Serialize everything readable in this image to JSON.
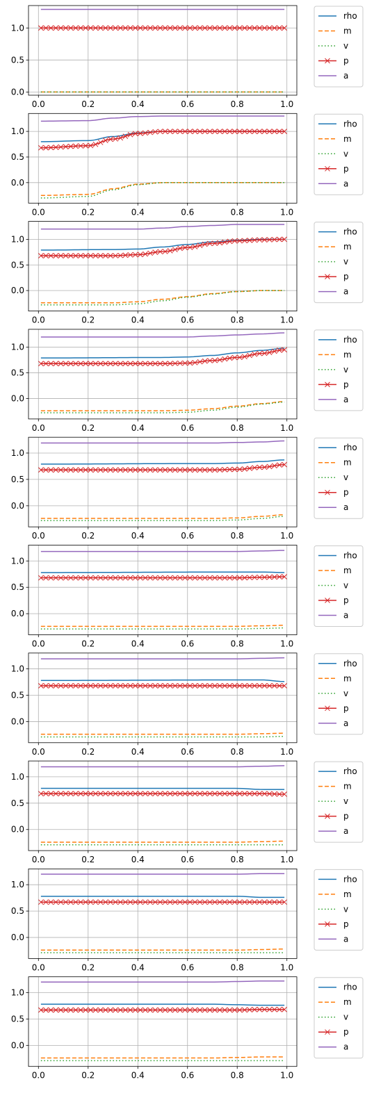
{
  "chart_data": [
    {
      "type": "line",
      "ylim": [
        -0.05,
        1.35
      ],
      "xticks": [
        "0.0",
        "0.2",
        "0.4",
        "0.6",
        "0.8",
        "1.0"
      ],
      "yticks": [
        "0.0",
        "0.5",
        "1.0"
      ],
      "grid": true,
      "legend_position": "outside-right",
      "x_range": [
        0.01,
        0.99
      ],
      "series": [
        {
          "name": "rho",
          "color": "#1f77b4",
          "style": "solid",
          "marker": "none",
          "values": [
            1.0,
            1.0
          ]
        },
        {
          "name": "m",
          "color": "#ff7f0e",
          "style": "dashed",
          "marker": "none",
          "values": [
            0.0,
            0.0
          ]
        },
        {
          "name": "v",
          "color": "#2ca02c",
          "style": "dotted",
          "marker": "none",
          "values": [
            0.0,
            0.0
          ]
        },
        {
          "name": "p",
          "color": "#d62728",
          "style": "solid",
          "marker": "x",
          "values": [
            1.0,
            1.0
          ]
        },
        {
          "name": "a",
          "color": "#9467bd",
          "style": "solid",
          "marker": "none",
          "values": [
            1.29,
            1.29
          ]
        }
      ]
    },
    {
      "type": "line",
      "ylim": [
        -0.4,
        1.35
      ],
      "xticks": [
        "0.0",
        "0.2",
        "0.4",
        "0.6",
        "0.8",
        "1.0"
      ],
      "yticks": [
        "0.0",
        "0.5",
        "1.0"
      ],
      "grid": true,
      "legend_position": "outside-right",
      "x": [
        0.01,
        0.2,
        0.3,
        0.4,
        0.5,
        0.6,
        0.8,
        0.99
      ],
      "series": [
        {
          "name": "rho",
          "values": [
            0.8,
            0.82,
            0.9,
            0.97,
            1.0,
            1.0,
            1.0,
            1.0
          ]
        },
        {
          "name": "m",
          "values": [
            -0.25,
            -0.23,
            -0.12,
            -0.03,
            0.0,
            0.0,
            0.0,
            0.0
          ]
        },
        {
          "name": "v",
          "values": [
            -0.3,
            -0.27,
            -0.14,
            -0.04,
            0.0,
            0.0,
            0.0,
            0.0
          ]
        },
        {
          "name": "p",
          "values": [
            0.68,
            0.72,
            0.85,
            0.96,
            1.0,
            1.0,
            1.0,
            1.0
          ]
        },
        {
          "name": "a",
          "values": [
            1.2,
            1.21,
            1.26,
            1.29,
            1.3,
            1.3,
            1.3,
            1.3
          ]
        }
      ]
    },
    {
      "type": "line",
      "ylim": [
        -0.4,
        1.35
      ],
      "xticks": [
        "0.0",
        "0.2",
        "0.4",
        "0.6",
        "0.8",
        "1.0"
      ],
      "yticks": [
        "0.0",
        "0.5",
        "1.0"
      ],
      "grid": true,
      "legend_position": "outside-right",
      "x": [
        0.01,
        0.3,
        0.4,
        0.5,
        0.6,
        0.7,
        0.8,
        0.9,
        0.99
      ],
      "series": [
        {
          "name": "rho",
          "values": [
            0.79,
            0.8,
            0.81,
            0.85,
            0.9,
            0.95,
            0.98,
            1.0,
            1.0
          ]
        },
        {
          "name": "m",
          "values": [
            -0.24,
            -0.24,
            -0.22,
            -0.17,
            -0.12,
            -0.06,
            -0.02,
            0.0,
            0.0
          ]
        },
        {
          "name": "v",
          "values": [
            -0.28,
            -0.28,
            -0.26,
            -0.2,
            -0.13,
            -0.07,
            -0.02,
            0.0,
            0.0
          ]
        },
        {
          "name": "p",
          "values": [
            0.68,
            0.68,
            0.7,
            0.76,
            0.84,
            0.92,
            0.97,
            0.99,
            1.0
          ]
        },
        {
          "name": "a",
          "values": [
            1.2,
            1.2,
            1.2,
            1.22,
            1.25,
            1.27,
            1.29,
            1.29,
            1.29
          ]
        }
      ]
    },
    {
      "type": "line",
      "ylim": [
        -0.4,
        1.35
      ],
      "xticks": [
        "0.0",
        "0.2",
        "0.4",
        "0.6",
        "0.8",
        "1.0"
      ],
      "yticks": [
        "0.0",
        "0.5",
        "1.0"
      ],
      "grid": true,
      "legend_position": "outside-right",
      "x": [
        0.01,
        0.5,
        0.6,
        0.7,
        0.8,
        0.9,
        0.99
      ],
      "series": [
        {
          "name": "rho",
          "values": [
            0.79,
            0.8,
            0.81,
            0.84,
            0.89,
            0.94,
            0.98
          ]
        },
        {
          "name": "m",
          "values": [
            -0.24,
            -0.24,
            -0.23,
            -0.2,
            -0.15,
            -0.1,
            -0.06
          ]
        },
        {
          "name": "v",
          "values": [
            -0.28,
            -0.28,
            -0.27,
            -0.23,
            -0.17,
            -0.11,
            -0.07
          ]
        },
        {
          "name": "p",
          "values": [
            0.68,
            0.68,
            0.69,
            0.74,
            0.8,
            0.88,
            0.95
          ]
        },
        {
          "name": "a",
          "values": [
            1.2,
            1.2,
            1.2,
            1.22,
            1.24,
            1.26,
            1.28
          ]
        }
      ]
    },
    {
      "type": "line",
      "ylim": [
        -0.4,
        1.3
      ],
      "xticks": [
        "0.0",
        "0.2",
        "0.4",
        "0.6",
        "0.8",
        "1.0"
      ],
      "yticks": [
        "0.0",
        "0.5",
        "1.0"
      ],
      "grid": true,
      "legend_position": "outside-right",
      "x": [
        0.01,
        0.6,
        0.7,
        0.8,
        0.9,
        0.99
      ],
      "series": [
        {
          "name": "rho",
          "values": [
            0.79,
            0.8,
            0.8,
            0.81,
            0.84,
            0.87
          ]
        },
        {
          "name": "m",
          "values": [
            -0.24,
            -0.24,
            -0.24,
            -0.23,
            -0.2,
            -0.17
          ]
        },
        {
          "name": "v",
          "values": [
            -0.28,
            -0.28,
            -0.28,
            -0.27,
            -0.24,
            -0.2
          ]
        },
        {
          "name": "p",
          "values": [
            0.68,
            0.68,
            0.68,
            0.69,
            0.73,
            0.78
          ]
        },
        {
          "name": "a",
          "values": [
            1.19,
            1.19,
            1.19,
            1.2,
            1.21,
            1.23
          ]
        }
      ]
    },
    {
      "type": "line",
      "ylim": [
        -0.4,
        1.3
      ],
      "xticks": [
        "0.0",
        "0.2",
        "0.4",
        "0.6",
        "0.8",
        "1.0"
      ],
      "yticks": [
        "0.0",
        "0.5",
        "1.0"
      ],
      "grid": true,
      "legend_position": "outside-right",
      "x": [
        0.01,
        0.8,
        0.9,
        0.99
      ],
      "series": [
        {
          "name": "rho",
          "values": [
            0.78,
            0.79,
            0.79,
            0.78
          ]
        },
        {
          "name": "m",
          "values": [
            -0.24,
            -0.24,
            -0.23,
            -0.22
          ]
        },
        {
          "name": "v",
          "values": [
            -0.29,
            -0.29,
            -0.28,
            -0.27
          ]
        },
        {
          "name": "p",
          "values": [
            0.68,
            0.68,
            0.69,
            0.7
          ]
        },
        {
          "name": "a",
          "values": [
            1.18,
            1.18,
            1.19,
            1.2
          ]
        }
      ]
    },
    {
      "type": "line",
      "ylim": [
        -0.4,
        1.3
      ],
      "xticks": [
        "0.0",
        "0.2",
        "0.4",
        "0.6",
        "0.8",
        "1.0"
      ],
      "yticks": [
        "0.0",
        "0.5",
        "1.0"
      ],
      "grid": true,
      "legend_position": "outside-right",
      "x": [
        0.01,
        0.8,
        0.9,
        0.99
      ],
      "series": [
        {
          "name": "rho",
          "values": [
            0.78,
            0.79,
            0.79,
            0.76
          ]
        },
        {
          "name": "m",
          "values": [
            -0.24,
            -0.24,
            -0.23,
            -0.22
          ]
        },
        {
          "name": "v",
          "values": [
            -0.29,
            -0.29,
            -0.29,
            -0.28
          ]
        },
        {
          "name": "p",
          "values": [
            0.68,
            0.68,
            0.68,
            0.68
          ]
        },
        {
          "name": "a",
          "values": [
            1.19,
            1.19,
            1.2,
            1.21
          ]
        }
      ]
    },
    {
      "type": "line",
      "ylim": [
        -0.4,
        1.3
      ],
      "xticks": [
        "0.0",
        "0.2",
        "0.4",
        "0.6",
        "0.8",
        "1.0"
      ],
      "yticks": [
        "0.0",
        "0.5",
        "1.0"
      ],
      "grid": true,
      "legend_position": "outside-right",
      "x": [
        0.01,
        0.8,
        0.9,
        0.99
      ],
      "series": [
        {
          "name": "rho",
          "values": [
            0.78,
            0.78,
            0.76,
            0.76
          ]
        },
        {
          "name": "m",
          "values": [
            -0.24,
            -0.24,
            -0.23,
            -0.22
          ]
        },
        {
          "name": "v",
          "values": [
            -0.29,
            -0.29,
            -0.29,
            -0.29
          ]
        },
        {
          "name": "p",
          "values": [
            0.68,
            0.68,
            0.68,
            0.67
          ]
        },
        {
          "name": "a",
          "values": [
            1.19,
            1.19,
            1.2,
            1.21
          ]
        }
      ]
    },
    {
      "type": "line",
      "ylim": [
        -0.4,
        1.3
      ],
      "xticks": [
        "0.0",
        "0.2",
        "0.4",
        "0.6",
        "0.8",
        "1.0"
      ],
      "yticks": [
        "0.0",
        "0.5",
        "1.0"
      ],
      "grid": true,
      "legend_position": "outside-right",
      "x": [
        0.01,
        0.8,
        0.9,
        0.99
      ],
      "series": [
        {
          "name": "rho",
          "values": [
            0.78,
            0.78,
            0.76,
            0.76
          ]
        },
        {
          "name": "m",
          "values": [
            -0.24,
            -0.24,
            -0.23,
            -0.22
          ]
        },
        {
          "name": "v",
          "values": [
            -0.29,
            -0.29,
            -0.29,
            -0.29
          ]
        },
        {
          "name": "p",
          "values": [
            0.67,
            0.67,
            0.67,
            0.67
          ]
        },
        {
          "name": "a",
          "values": [
            1.2,
            1.2,
            1.21,
            1.21
          ]
        }
      ]
    },
    {
      "type": "line",
      "ylim": [
        -0.4,
        1.3
      ],
      "xticks": [
        "0.0",
        "0.2",
        "0.4",
        "0.6",
        "0.8",
        "1.0"
      ],
      "yticks": [
        "0.0",
        "0.5",
        "1.0"
      ],
      "grid": true,
      "legend_position": "outside-right",
      "x": [
        0.01,
        0.7,
        0.8,
        0.9,
        0.99
      ],
      "series": [
        {
          "name": "rho",
          "values": [
            0.78,
            0.78,
            0.77,
            0.76,
            0.76
          ]
        },
        {
          "name": "m",
          "values": [
            -0.24,
            -0.24,
            -0.23,
            -0.22,
            -0.22
          ]
        },
        {
          "name": "v",
          "values": [
            -0.29,
            -0.29,
            -0.29,
            -0.29,
            -0.29
          ]
        },
        {
          "name": "p",
          "values": [
            0.67,
            0.67,
            0.67,
            0.68,
            0.68
          ]
        },
        {
          "name": "a",
          "values": [
            1.2,
            1.2,
            1.21,
            1.22,
            1.22
          ]
        }
      ]
    }
  ],
  "series_style": [
    {
      "name": "rho",
      "color": "#1f77b4",
      "dash": "",
      "marker": false
    },
    {
      "name": "m",
      "color": "#ff7f0e",
      "dash": "6,3",
      "marker": false
    },
    {
      "name": "v",
      "color": "#2ca02c",
      "dash": "1.5,3",
      "marker": false
    },
    {
      "name": "p",
      "color": "#d62728",
      "dash": "",
      "marker": true
    },
    {
      "name": "a",
      "color": "#9467bd",
      "dash": "",
      "marker": false
    }
  ]
}
